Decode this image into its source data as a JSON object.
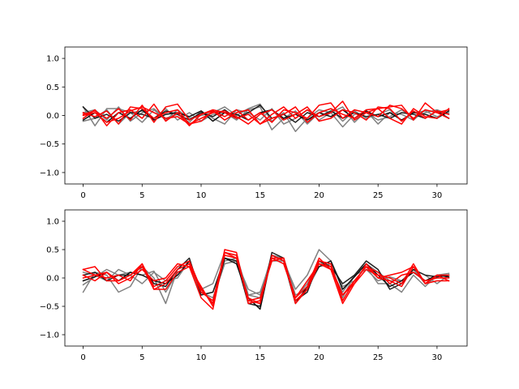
{
  "chart_data": [
    {
      "type": "line",
      "x": [
        0,
        1,
        2,
        3,
        4,
        5,
        6,
        7,
        8,
        9,
        10,
        11,
        12,
        13,
        14,
        15,
        16,
        17,
        18,
        19,
        20,
        21,
        22,
        23,
        24,
        25,
        26,
        27,
        28,
        29,
        30,
        31
      ],
      "xlim": [
        -1.55,
        32.55
      ],
      "ylim": [
        -1.2,
        1.2
      ],
      "xticks": [
        0,
        5,
        10,
        15,
        20,
        25,
        30
      ],
      "yticks": [
        -1.0,
        -0.5,
        0.0,
        0.5,
        1.0
      ],
      "ytick_labels": [
        "−1.0",
        "−0.5",
        "0.0",
        "0.5",
        "1.0"
      ],
      "grid": false,
      "series": [
        {
          "color": "#808080",
          "values": [
            0.15,
            -0.18,
            0.12,
            0.12,
            0.05,
            -0.12,
            0.1,
            -0.08,
            0.1,
            -0.05,
            0.0,
            0.05,
            0.15,
            0.0,
            0.12,
            0.2,
            -0.1,
            0.05,
            -0.28,
            -0.05,
            0.1,
            0.05,
            -0.2,
            0.02,
            0.05,
            -0.08,
            -0.02,
            0.1,
            -0.05,
            0.05,
            0.1,
            0.02
          ]
        },
        {
          "color": "#808080",
          "values": [
            -0.1,
            -0.05,
            0.1,
            -0.15,
            0.05,
            0.08,
            -0.05,
            0.12,
            -0.08,
            0.05,
            -0.1,
            0.02,
            0.05,
            -0.08,
            0.1,
            0.15,
            -0.25,
            -0.05,
            0.08,
            -0.15,
            0.05,
            0.12,
            -0.1,
            0.08,
            -0.05,
            0.02,
            0.1,
            -0.1,
            0.05,
            0.08,
            -0.02,
            0.05
          ]
        },
        {
          "color": "#808080",
          "values": [
            0.05,
            0.1,
            -0.08,
            0.15,
            -0.1,
            0.05,
            0.12,
            -0.05,
            0.02,
            -0.12,
            0.08,
            -0.05,
            -0.15,
            0.1,
            0.05,
            -0.08,
            0.12,
            -0.15,
            -0.05,
            0.1,
            -0.08,
            0.05,
            0.15,
            -0.12,
            0.08,
            -0.15,
            0.05,
            0.02,
            -0.08,
            0.1,
            0.05,
            -0.05
          ]
        },
        {
          "color": "#202020",
          "values": [
            0.15,
            -0.05,
            0.02,
            -0.1,
            0.05,
            0.02,
            -0.05,
            0.08,
            0.02,
            -0.08,
            0.05,
            -0.02,
            0.1,
            -0.05,
            0.05,
            0.18,
            -0.05,
            0.02,
            -0.12,
            0.05,
            -0.02,
            0.08,
            -0.05,
            0.05,
            -0.02,
            0.02,
            -0.05,
            0.05,
            0.02,
            -0.05,
            0.08,
            -0.05
          ]
        },
        {
          "color": "#101010",
          "values": [
            -0.08,
            0.05,
            -0.12,
            0.05,
            -0.05,
            0.1,
            -0.08,
            0.02,
            0.05,
            -0.02,
            0.08,
            -0.1,
            0.05,
            0.02,
            -0.08,
            0.05,
            0.1,
            -0.05,
            0.02,
            -0.08,
            0.05,
            -0.02,
            0.1,
            -0.05,
            0.08,
            -0.02,
            0.05,
            -0.08,
            0.05,
            0.02,
            -0.05,
            0.08
          ]
        },
        {
          "color": "#ff0000",
          "values": [
            0.02,
            0.08,
            -0.05,
            0.12,
            -0.08,
            0.18,
            -0.12,
            0.15,
            0.2,
            -0.08,
            0.02,
            0.1,
            0.05,
            -0.05,
            0.02,
            -0.15,
            0.02,
            0.15,
            -0.05,
            0.1,
            -0.02,
            0.05,
            0.25,
            -0.08,
            0.05,
            0.12,
            0.15,
            0.18,
            -0.08,
            0.22,
            0.05,
            0.1
          ]
        },
        {
          "color": "#ff0000",
          "values": [
            -0.05,
            0.1,
            -0.18,
            0.05,
            0.1,
            -0.05,
            0.2,
            -0.1,
            0.05,
            -0.18,
            0.02,
            0.08,
            -0.02,
            0.1,
            -0.08,
            0.05,
            -0.12,
            0.1,
            0.05,
            -0.05,
            0.18,
            0.22,
            -0.05,
            0.1,
            0.05,
            -0.02,
            0.18,
            0.12,
            -0.05,
            0.1,
            0.05,
            -0.05
          ]
        },
        {
          "color": "#ff0000",
          "values": [
            0.05,
            -0.02,
            0.08,
            -0.15,
            0.15,
            0.12,
            -0.05,
            0.05,
            0.1,
            -0.15,
            -0.1,
            0.08,
            -0.08,
            0.05,
            0.1,
            -0.15,
            -0.05,
            0.02,
            0.15,
            -0.12,
            0.05,
            0.12,
            0.02,
            -0.05,
            0.1,
            0.12,
            -0.05,
            -0.15,
            0.12,
            -0.02,
            -0.05,
            0.12
          ]
        },
        {
          "color": "#ff0000",
          "values": [
            0.0,
            0.05,
            -0.12,
            -0.05,
            0.08,
            0.15,
            0.05,
            -0.05,
            -0.02,
            -0.15,
            -0.05,
            0.05,
            0.08,
            -0.02,
            -0.15,
            0.02,
            0.1,
            -0.08,
            0.02,
            0.15,
            -0.1,
            -0.05,
            0.1,
            0.05,
            -0.08,
            0.15,
            0.12,
            -0.1,
            0.08,
            -0.05,
            0.08,
            0.02
          ]
        }
      ]
    },
    {
      "type": "line",
      "x": [
        0,
        1,
        2,
        3,
        4,
        5,
        6,
        7,
        8,
        9,
        10,
        11,
        12,
        13,
        14,
        15,
        16,
        17,
        18,
        19,
        20,
        21,
        22,
        23,
        24,
        25,
        26,
        27,
        28,
        29,
        30,
        31
      ],
      "xlim": [
        -1.55,
        32.55
      ],
      "ylim": [
        -1.2,
        1.2
      ],
      "xticks": [
        0,
        5,
        10,
        15,
        20,
        25,
        30
      ],
      "yticks": [
        -1.0,
        -0.5,
        0.0,
        0.5,
        1.0
      ],
      "ytick_labels": [
        "−1.0",
        "−0.5",
        "0.0",
        "0.5",
        "1.0"
      ],
      "grid": false,
      "series": [
        {
          "color": "#808080",
          "values": [
            -0.25,
            0.1,
            0.05,
            -0.25,
            -0.15,
            0.2,
            0.0,
            -0.45,
            0.15,
            0.25,
            -0.2,
            -0.1,
            0.45,
            0.4,
            -0.3,
            -0.35,
            0.3,
            0.3,
            -0.2,
            0.05,
            0.5,
            0.3,
            -0.15,
            -0.05,
            0.2,
            -0.1,
            -0.1,
            -0.25,
            0.05,
            -0.15,
            0.05,
            0.08
          ]
        },
        {
          "color": "#808080",
          "values": [
            -0.12,
            0.02,
            0.15,
            0.05,
            0.1,
            0.05,
            0.12,
            -0.25,
            0.1,
            0.2,
            -0.3,
            -0.25,
            0.3,
            0.35,
            -0.3,
            -0.25,
            0.35,
            0.25,
            -0.35,
            -0.1,
            0.3,
            0.15,
            -0.25,
            0.05,
            0.15,
            -0.05,
            0.02,
            -0.05,
            0.15,
            -0.1,
            0.02,
            0.05
          ]
        },
        {
          "color": "#808080",
          "values": [
            0.1,
            0.05,
            -0.05,
            0.15,
            0.05,
            -0.1,
            0.1,
            -0.05,
            0.0,
            0.3,
            -0.25,
            -0.35,
            0.25,
            0.3,
            -0.2,
            -0.3,
            0.4,
            0.35,
            -0.3,
            -0.2,
            0.2,
            0.25,
            -0.35,
            0.05,
            0.25,
            0.1,
            -0.05,
            -0.05,
            0.15,
            0.05,
            -0.1,
            0.05
          ]
        },
        {
          "color": "#202020",
          "values": [
            0.05,
            0.1,
            -0.05,
            0.05,
            0.05,
            0.2,
            -0.1,
            -0.15,
            0.15,
            0.35,
            -0.3,
            -0.25,
            0.35,
            0.3,
            -0.45,
            -0.5,
            0.45,
            0.35,
            -0.4,
            -0.25,
            0.3,
            0.2,
            -0.1,
            0.05,
            0.3,
            0.15,
            -0.2,
            -0.1,
            0.15,
            0.05,
            0.02,
            0.05
          ]
        },
        {
          "color": "#101010",
          "values": [
            -0.05,
            0.02,
            0.1,
            -0.05,
            0.1,
            0.05,
            -0.05,
            -0.1,
            0.05,
            0.3,
            -0.2,
            -0.45,
            0.35,
            0.25,
            -0.35,
            -0.55,
            0.4,
            0.3,
            -0.45,
            -0.15,
            0.2,
            0.3,
            -0.2,
            0.02,
            0.25,
            0.05,
            -0.15,
            -0.05,
            0.1,
            -0.05,
            0.05,
            0.02
          ]
        },
        {
          "color": "#ff0000",
          "values": [
            0.15,
            0.2,
            -0.05,
            -0.05,
            0.05,
            0.25,
            -0.2,
            -0.2,
            0.1,
            0.2,
            -0.35,
            -0.55,
            0.45,
            0.4,
            -0.4,
            -0.35,
            0.3,
            0.35,
            -0.45,
            -0.2,
            0.25,
            0.15,
            -0.45,
            -0.1,
            0.15,
            0.05,
            0.0,
            -0.1,
            0.25,
            -0.1,
            0.05,
            -0.05
          ]
        },
        {
          "color": "#ff0000",
          "values": [
            0.05,
            -0.05,
            0.1,
            -0.1,
            0.0,
            0.15,
            -0.05,
            0.0,
            0.25,
            0.2,
            -0.15,
            -0.5,
            0.5,
            0.45,
            -0.45,
            -0.4,
            0.35,
            0.25,
            -0.35,
            -0.05,
            0.25,
            0.2,
            -0.3,
            -0.05,
            0.2,
            0.1,
            -0.1,
            0.05,
            0.1,
            -0.05,
            0.0,
            0.0
          ]
        },
        {
          "color": "#ff0000",
          "values": [
            0.0,
            0.05,
            0.0,
            0.05,
            -0.05,
            0.25,
            -0.15,
            -0.05,
            0.2,
            0.3,
            -0.2,
            -0.45,
            0.4,
            0.35,
            -0.35,
            -0.45,
            0.35,
            0.35,
            -0.4,
            -0.2,
            0.3,
            0.25,
            -0.4,
            -0.05,
            0.2,
            0.0,
            0.05,
            0.1,
            0.2,
            -0.1,
            0.05,
            0.05
          ]
        },
        {
          "color": "#ff0000",
          "values": [
            0.15,
            0.05,
            0.1,
            -0.05,
            0.05,
            0.2,
            -0.2,
            -0.1,
            0.15,
            0.25,
            -0.25,
            -0.4,
            0.45,
            0.35,
            -0.4,
            -0.45,
            0.4,
            0.3,
            -0.35,
            -0.15,
            0.35,
            0.15,
            -0.3,
            -0.1,
            0.25,
            0.0,
            -0.05,
            -0.15,
            0.2,
            -0.1,
            -0.05,
            -0.05
          ]
        }
      ]
    }
  ]
}
